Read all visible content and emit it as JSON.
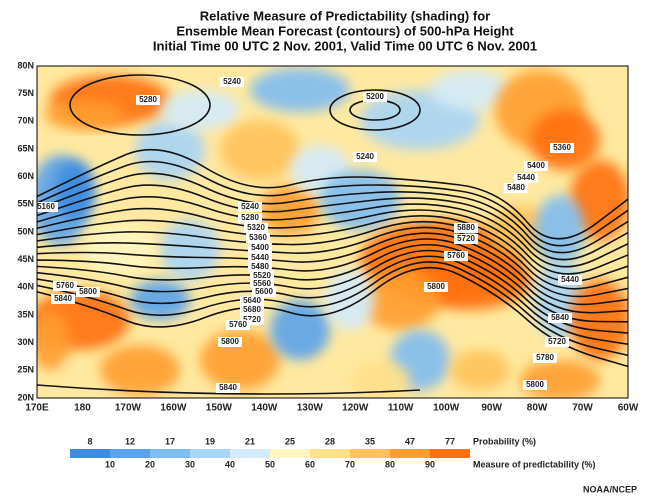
{
  "title": [
    "Relative Measure of Predictability (shading) for",
    "Ensemble Mean Forecast (contours) of 500-hPa Height",
    "Initial Time 00 UTC 2 Nov. 2001, Valid Time 00 UTC 6 Nov. 2001"
  ],
  "latitude_labels": [
    "80N",
    "75N",
    "70N",
    "65N",
    "60N",
    "55N",
    "50N",
    "45N",
    "40N",
    "35N",
    "30N",
    "25N",
    "20N"
  ],
  "longitude_labels": [
    "170E",
    "180",
    "170W",
    "160W",
    "150W",
    "140W",
    "130W",
    "120W",
    "110W",
    "100W",
    "90W",
    "80W",
    "70W",
    "60W"
  ],
  "contour_labels": [
    "5240",
    "5280",
    "5200",
    "5240",
    "5360",
    "5400",
    "5440",
    "5480",
    "5160",
    "5240",
    "5280",
    "5320",
    "5360",
    "5400",
    "5440",
    "5480",
    "5520",
    "5560",
    "5600",
    "5640",
    "5680",
    "5720",
    "5760",
    "5760",
    "5800",
    "5840",
    "5800",
    "5840",
    "5880",
    "5720",
    "5760",
    "5800",
    "5440",
    "5840",
    "5720",
    "5780",
    "5800"
  ],
  "legend": {
    "probability_label": "Probability (%)",
    "probabilities": [
      "8",
      "12",
      "17",
      "19",
      "21",
      "25",
      "28",
      "35",
      "47",
      "77"
    ],
    "measure_label": "Measure of predictability (%)",
    "measures": [
      "10",
      "20",
      "30",
      "40",
      "50",
      "60",
      "70",
      "80",
      "90"
    ],
    "colors": [
      "#3d8be0",
      "#5aa3ec",
      "#7fbcf2",
      "#a8d4f6",
      "#d3ebfa",
      "#fff6c2",
      "#ffe08a",
      "#ffc25a",
      "#ff9d2e",
      "#ff6f0a"
    ]
  },
  "credit": "NOAA/NCEP"
}
